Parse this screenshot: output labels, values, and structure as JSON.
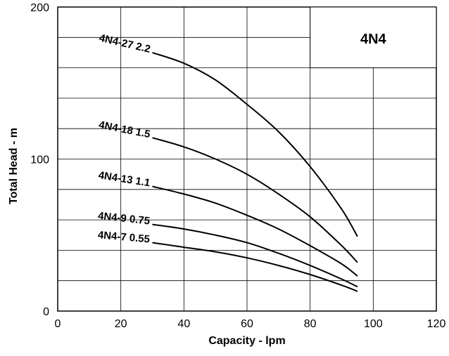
{
  "chart_data": {
    "type": "line",
    "title": "",
    "badge": "4N4",
    "xlabel": "Capacity - lpm",
    "ylabel": "Total Head - m",
    "xlim": [
      0,
      120
    ],
    "ylim": [
      0,
      200
    ],
    "x_ticks": [
      0,
      20,
      40,
      60,
      80,
      100,
      120
    ],
    "y_ticks": [
      0,
      100,
      200
    ],
    "grid": true,
    "colors": {
      "line": "#000000",
      "grid": "#000000",
      "background": "#ffffff"
    },
    "series": [
      {
        "name": "4N4-27 2.2",
        "x": [
          30,
          40,
          50,
          60,
          70,
          80,
          90,
          95
        ],
        "y": [
          170,
          163,
          152,
          136,
          118,
          95,
          67,
          49
        ]
      },
      {
        "name": "4N4-18 1.5",
        "x": [
          30,
          40,
          50,
          60,
          70,
          80,
          90,
          95
        ],
        "y": [
          114,
          108,
          100,
          90,
          77,
          62,
          43,
          32
        ]
      },
      {
        "name": "4N4-13 1.1",
        "x": [
          30,
          40,
          50,
          60,
          70,
          80,
          90,
          95
        ],
        "y": [
          82,
          77,
          71,
          63,
          54,
          43,
          31,
          23
        ]
      },
      {
        "name": "4N4-9 0.75",
        "x": [
          30,
          40,
          50,
          60,
          70,
          80,
          90,
          95
        ],
        "y": [
          57,
          54,
          50,
          45,
          38,
          30,
          21,
          16
        ]
      },
      {
        "name": "4N4-7 0.55",
        "x": [
          30,
          40,
          50,
          60,
          70,
          80,
          90,
          95
        ],
        "y": [
          45,
          42,
          39,
          35,
          30,
          24,
          17,
          13
        ]
      }
    ]
  }
}
